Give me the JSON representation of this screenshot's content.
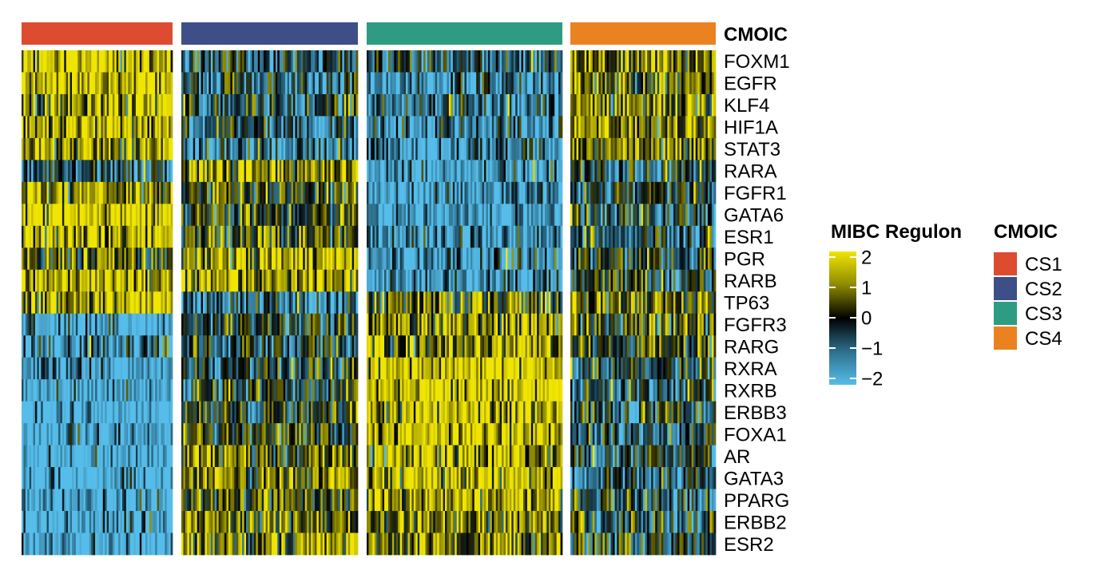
{
  "chart_data": {
    "type": "heatmap",
    "annotation_title": "CMOIC",
    "clusters": [
      {
        "name": "CS1",
        "color": "#DD4B30",
        "n_samples": 78
      },
      {
        "name": "CS2",
        "color": "#3E4F87",
        "n_samples": 90
      },
      {
        "name": "CS3",
        "color": "#2E9C82",
        "n_samples": 100
      },
      {
        "name": "CS4",
        "color": "#EA8220",
        "n_samples": 72
      }
    ],
    "rows": [
      "FOXM1",
      "EGFR",
      "KLF4",
      "HIF1A",
      "STAT3",
      "RARA",
      "FGFR1",
      "GATA6",
      "ESR1",
      "PGR",
      "RARB",
      "TP63",
      "FGFR3",
      "RARG",
      "RXRA",
      "RXRB",
      "ERBB3",
      "FOXA1",
      "AR",
      "GATA3",
      "PPARG",
      "ERBB2",
      "ESR2"
    ],
    "cluster_mean_z": {
      "CS1": [
        1.3,
        1.6,
        1.2,
        1.4,
        1.3,
        -0.6,
        1.2,
        1.8,
        1.4,
        0.6,
        1.2,
        1.5,
        -1.8,
        -1.2,
        -1.6,
        -1.8,
        -2.0,
        -1.6,
        -1.9,
        -1.8,
        -1.8,
        -1.9,
        -1.8
      ],
      "CS2": [
        -0.6,
        -0.8,
        -0.5,
        -0.9,
        -0.9,
        1.0,
        0.3,
        0.2,
        0.3,
        1.3,
        1.3,
        -1.2,
        -0.1,
        -0.4,
        -0.2,
        -0.3,
        0.0,
        0.2,
        0.6,
        0.8,
        0.6,
        0.9,
        0.9
      ],
      "CS3": [
        -0.7,
        -1.3,
        -0.9,
        -1.2,
        -1.1,
        -1.5,
        -1.6,
        -1.7,
        -1.4,
        -1.3,
        -1.5,
        0.6,
        1.2,
        1.0,
        1.7,
        1.7,
        1.5,
        1.6,
        1.3,
        1.4,
        1.2,
        1.0,
        0.8
      ],
      "CS4": [
        1.1,
        0.8,
        0.9,
        1.0,
        0.9,
        -0.3,
        -0.3,
        -0.5,
        -0.6,
        -0.3,
        -0.2,
        0.8,
        0.1,
        0.0,
        -0.3,
        -0.4,
        -0.4,
        -0.6,
        -0.5,
        -0.6,
        -0.5,
        -0.4,
        -0.3
      ]
    },
    "noise_sd": 1.0,
    "value_range": [
      -2,
      2
    ],
    "colorscale": [
      {
        "value": -2,
        "color": "#56BDEA"
      },
      {
        "value": -1,
        "color": "#2E6F8C"
      },
      {
        "value": 0,
        "color": "#000000"
      },
      {
        "value": 1,
        "color": "#8E8A00"
      },
      {
        "value": 2,
        "color": "#F0E500"
      }
    ],
    "color_legend": {
      "title": "MIBC Regulon",
      "ticks": [
        "2",
        "1",
        "0",
        "−1",
        "−2"
      ]
    },
    "cluster_legend_title": "CMOIC"
  }
}
